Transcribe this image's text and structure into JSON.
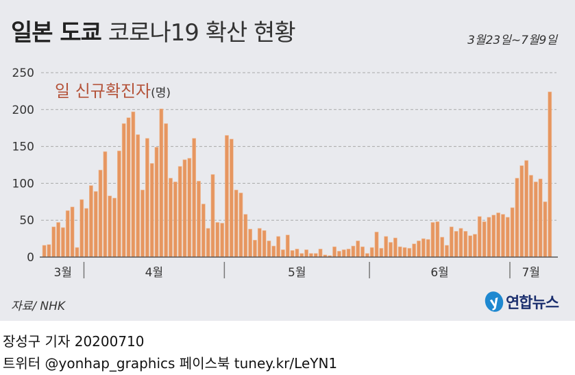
{
  "title": {
    "bold": "일본 도쿄",
    "light": "코로나19 확산 현황"
  },
  "period": "3월23일~7월9일",
  "legend": {
    "label": "일 신규확진자",
    "unit": "(명)"
  },
  "source": "자료/ NHK",
  "logo": {
    "mark": "y",
    "text": "연합뉴스"
  },
  "credit": {
    "line1": "장성구 기자  20200710",
    "line2": "트위터 @yonhap_graphics  페이스북 tuney.kr/LeYN1"
  },
  "colors": {
    "bar": "#e69660",
    "background": "#e9eaee",
    "legend": "#b4533a"
  },
  "chart_data": {
    "type": "bar",
    "title": "일 신규확진자",
    "ylabel": "(명)",
    "ylim": [
      0,
      250
    ],
    "yticks": [
      0,
      50,
      100,
      150,
      200,
      250
    ],
    "grid": true,
    "months": [
      {
        "label": "3월",
        "start": 0,
        "days": 9
      },
      {
        "label": "4월",
        "start": 9,
        "days": 30
      },
      {
        "label": "5월",
        "start": 39,
        "days": 31
      },
      {
        "label": "6월",
        "start": 70,
        "days": 30
      },
      {
        "label": "7월",
        "start": 100,
        "days": 9
      }
    ],
    "values": [
      16,
      17,
      41,
      47,
      40,
      63,
      68,
      13,
      78,
      66,
      97,
      89,
      118,
      143,
      83,
      80,
      144,
      181,
      189,
      197,
      166,
      91,
      161,
      127,
      149,
      201,
      181,
      107,
      102,
      123,
      132,
      134,
      161,
      103,
      72,
      39,
      112,
      47,
      46,
      165,
      160,
      91,
      87,
      58,
      38,
      23,
      39,
      36,
      22,
      15,
      28,
      10,
      30,
      9,
      11,
      5,
      10,
      5,
      5,
      11,
      3,
      2,
      14,
      8,
      10,
      11,
      15,
      22,
      14,
      5,
      13,
      34,
      12,
      28,
      20,
      26,
      14,
      13,
      12,
      18,
      22,
      25,
      24,
      47,
      48,
      27,
      16,
      41,
      35,
      39,
      35,
      29,
      31,
      55,
      48,
      54,
      57,
      60,
      58,
      54,
      67,
      107,
      124,
      131,
      111,
      102,
      106,
      75,
      224
    ]
  }
}
